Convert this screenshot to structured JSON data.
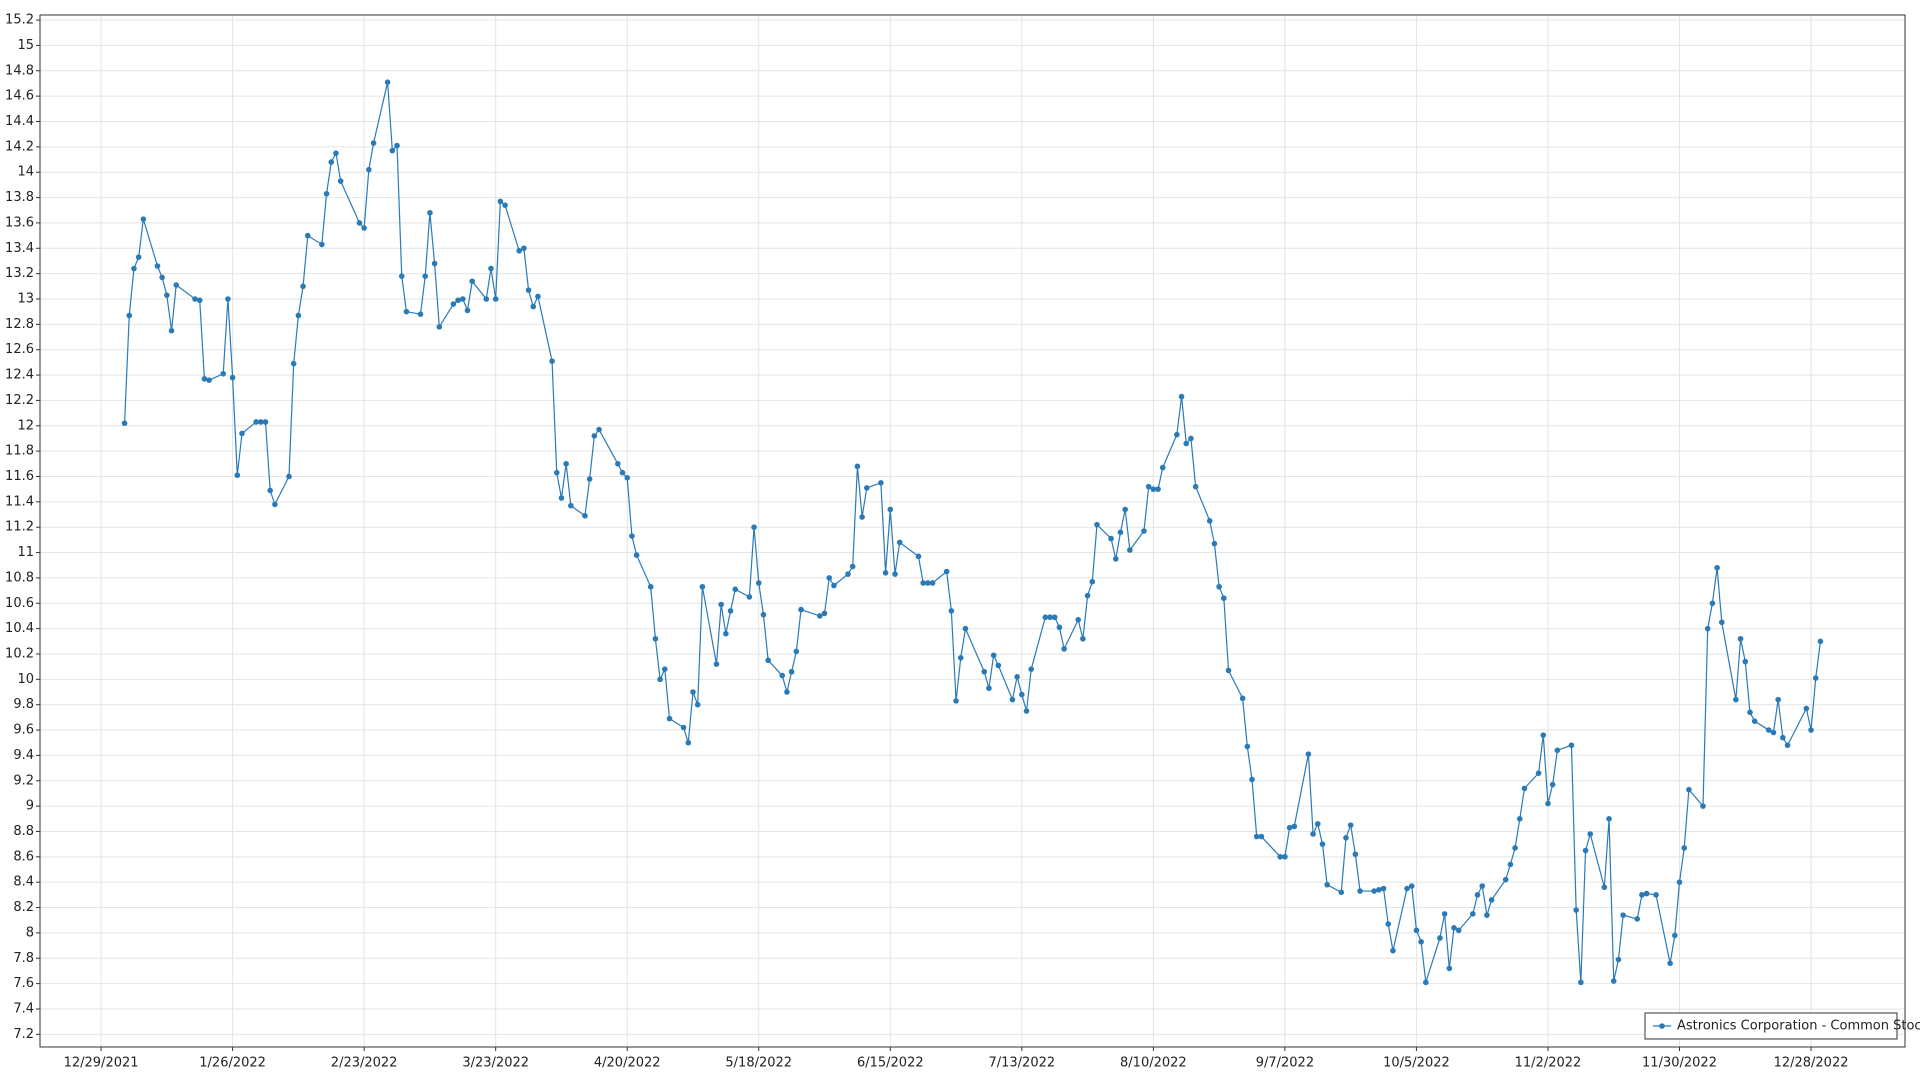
{
  "chart_data": {
    "type": "line",
    "xlim": [
      "12/16/2021",
      "1/17/2023"
    ],
    "xticks": [
      "12/29/2021",
      "1/26/2022",
      "2/23/2022",
      "3/23/2022",
      "4/20/2022",
      "5/18/2022",
      "6/15/2022",
      "7/13/2022",
      "8/10/2022",
      "9/7/2022",
      "10/5/2022",
      "11/2/2022",
      "11/30/2022",
      "12/28/2022"
    ],
    "ylim": [
      7.1,
      15.24
    ],
    "yticks": [
      7.2,
      7.4,
      7.6,
      7.8,
      8,
      8.2,
      8.4,
      8.6,
      8.8,
      9,
      9.2,
      9.4,
      9.6,
      9.8,
      10,
      10.2,
      10.4,
      10.6,
      10.8,
      11,
      11.2,
      11.4,
      11.6,
      11.8,
      12,
      12.2,
      12.4,
      12.6,
      12.8,
      13,
      13.2,
      13.4,
      13.6,
      13.8,
      14,
      14.2,
      14.4,
      14.6,
      14.8,
      15,
      15.2
    ],
    "grid": true,
    "legend": "lower right",
    "series": [
      {
        "name": "Astronics Corporation - Common Stock",
        "color": "#2a7ab8",
        "x": [
          "1/3/2022",
          "1/4/2022",
          "1/5/2022",
          "1/6/2022",
          "1/7/2022",
          "1/10/2022",
          "1/11/2022",
          "1/12/2022",
          "1/13/2022",
          "1/14/2022",
          "1/18/2022",
          "1/19/2022",
          "1/20/2022",
          "1/21/2022",
          "1/24/2022",
          "1/25/2022",
          "1/26/2022",
          "1/27/2022",
          "1/28/2022",
          "1/31/2022",
          "2/1/2022",
          "2/2/2022",
          "2/3/2022",
          "2/4/2022",
          "2/7/2022",
          "2/8/2022",
          "2/9/2022",
          "2/10/2022",
          "2/11/2022",
          "2/14/2022",
          "2/15/2022",
          "2/16/2022",
          "2/17/2022",
          "2/18/2022",
          "2/22/2022",
          "2/23/2022",
          "2/24/2022",
          "2/25/2022",
          "2/28/2022",
          "3/1/2022",
          "3/2/2022",
          "3/3/2022",
          "3/4/2022",
          "3/7/2022",
          "3/8/2022",
          "3/9/2022",
          "3/10/2022",
          "3/11/2022",
          "3/14/2022",
          "3/15/2022",
          "3/16/2022",
          "3/17/2022",
          "3/18/2022",
          "3/21/2022",
          "3/22/2022",
          "3/23/2022",
          "3/24/2022",
          "3/25/2022",
          "3/28/2022",
          "3/29/2022",
          "3/30/2022",
          "3/31/2022",
          "4/1/2022",
          "4/4/2022",
          "4/5/2022",
          "4/6/2022",
          "4/7/2022",
          "4/8/2022",
          "4/11/2022",
          "4/12/2022",
          "4/13/2022",
          "4/14/2022",
          "4/18/2022",
          "4/19/2022",
          "4/20/2022",
          "4/21/2022",
          "4/22/2022",
          "4/25/2022",
          "4/26/2022",
          "4/27/2022",
          "4/28/2022",
          "4/29/2022",
          "5/2/2022",
          "5/3/2022",
          "5/4/2022",
          "5/5/2022",
          "5/6/2022",
          "5/9/2022",
          "5/10/2022",
          "5/11/2022",
          "5/12/2022",
          "5/13/2022",
          "5/16/2022",
          "5/17/2022",
          "5/18/2022",
          "5/19/2022",
          "5/20/2022",
          "5/23/2022",
          "5/24/2022",
          "5/25/2022",
          "5/26/2022",
          "5/27/2022",
          "5/31/2022",
          "6/1/2022",
          "6/2/2022",
          "6/3/2022",
          "6/6/2022",
          "6/7/2022",
          "6/8/2022",
          "6/9/2022",
          "6/10/2022",
          "6/13/2022",
          "6/14/2022",
          "6/15/2022",
          "6/16/2022",
          "6/17/2022",
          "6/21/2022",
          "6/22/2022",
          "6/23/2022",
          "6/24/2022",
          "6/27/2022",
          "6/28/2022",
          "6/29/2022",
          "6/30/2022",
          "7/1/2022",
          "7/5/2022",
          "7/6/2022",
          "7/7/2022",
          "7/8/2022",
          "7/11/2022",
          "7/12/2022",
          "7/13/2022",
          "7/14/2022",
          "7/15/2022",
          "7/18/2022",
          "7/19/2022",
          "7/20/2022",
          "7/21/2022",
          "7/22/2022",
          "7/25/2022",
          "7/26/2022",
          "7/27/2022",
          "7/28/2022",
          "7/29/2022",
          "8/1/2022",
          "8/2/2022",
          "8/3/2022",
          "8/4/2022",
          "8/5/2022",
          "8/8/2022",
          "8/9/2022",
          "8/10/2022",
          "8/11/2022",
          "8/12/2022",
          "8/15/2022",
          "8/16/2022",
          "8/17/2022",
          "8/18/2022",
          "8/19/2022",
          "8/22/2022",
          "8/23/2022",
          "8/24/2022",
          "8/25/2022",
          "8/26/2022",
          "8/29/2022",
          "8/30/2022",
          "8/31/2022",
          "9/1/2022",
          "9/2/2022",
          "9/6/2022",
          "9/7/2022",
          "9/8/2022",
          "9/9/2022",
          "9/12/2022",
          "9/13/2022",
          "9/14/2022",
          "9/15/2022",
          "9/16/2022",
          "9/19/2022",
          "9/20/2022",
          "9/21/2022",
          "9/22/2022",
          "9/23/2022",
          "9/26/2022",
          "9/27/2022",
          "9/28/2022",
          "9/29/2022",
          "9/30/2022",
          "10/3/2022",
          "10/4/2022",
          "10/5/2022",
          "10/6/2022",
          "10/7/2022",
          "10/10/2022",
          "10/11/2022",
          "10/12/2022",
          "10/13/2022",
          "10/14/2022",
          "10/17/2022",
          "10/18/2022",
          "10/19/2022",
          "10/20/2022",
          "10/21/2022",
          "10/24/2022",
          "10/25/2022",
          "10/26/2022",
          "10/27/2022",
          "10/28/2022",
          "10/31/2022",
          "11/1/2022",
          "11/2/2022",
          "11/3/2022",
          "11/4/2022",
          "11/7/2022",
          "11/8/2022",
          "11/9/2022",
          "11/10/2022",
          "11/11/2022",
          "11/14/2022",
          "11/15/2022",
          "11/16/2022",
          "11/17/2022",
          "11/18/2022",
          "11/21/2022",
          "11/22/2022",
          "11/23/2022",
          "11/25/2022",
          "11/28/2022",
          "11/29/2022",
          "11/30/2022",
          "12/1/2022",
          "12/2/2022",
          "12/5/2022",
          "12/6/2022",
          "12/7/2022",
          "12/8/2022",
          "12/9/2022",
          "12/12/2022",
          "12/13/2022",
          "12/14/2022",
          "12/15/2022",
          "12/16/2022",
          "12/19/2022",
          "12/20/2022",
          "12/21/2022",
          "12/22/2022",
          "12/23/2022",
          "12/27/2022",
          "12/28/2022",
          "12/29/2022",
          "12/30/2022"
        ],
        "values": [
          12.02,
          12.87,
          13.24,
          13.33,
          13.63,
          13.26,
          13.17,
          13.03,
          12.75,
          13.11,
          13.0,
          12.99,
          12.37,
          12.36,
          12.41,
          13.0,
          12.38,
          11.61,
          11.94,
          12.03,
          12.03,
          12.03,
          11.49,
          11.38,
          11.6,
          12.49,
          12.87,
          13.1,
          13.5,
          13.43,
          13.83,
          14.08,
          14.15,
          13.93,
          13.6,
          13.56,
          14.02,
          14.23,
          14.71,
          14.17,
          14.21,
          13.18,
          12.9,
          12.88,
          13.18,
          13.68,
          13.28,
          12.78,
          12.96,
          12.99,
          13.0,
          12.91,
          13.14,
          13.0,
          13.24,
          13.0,
          13.77,
          13.74,
          13.38,
          13.4,
          13.07,
          12.94,
          13.02,
          12.51,
          11.63,
          11.43,
          11.7,
          11.37,
          11.29,
          11.58,
          11.92,
          11.97,
          11.7,
          11.63,
          11.59,
          11.13,
          10.98,
          10.73,
          10.32,
          10.0,
          10.08,
          9.69,
          9.62,
          9.5,
          9.9,
          9.8,
          10.73,
          10.12,
          10.59,
          10.36,
          10.54,
          10.71,
          10.65,
          11.2,
          10.76,
          10.51,
          10.15,
          10.03,
          9.9,
          10.06,
          10.22,
          10.55,
          10.5,
          10.52,
          10.8,
          10.74,
          10.83,
          10.89,
          11.68,
          11.28,
          11.51,
          11.55,
          10.84,
          11.34,
          10.83,
          11.08,
          10.97,
          10.76,
          10.76,
          10.76,
          10.85,
          10.54,
          9.83,
          10.17,
          10.4,
          10.06,
          9.93,
          10.19,
          10.11,
          9.84,
          10.02,
          9.88,
          9.75,
          10.08,
          10.49,
          10.49,
          10.49,
          10.41,
          10.24,
          10.47,
          10.32,
          10.66,
          10.77,
          11.22,
          11.11,
          10.95,
          11.16,
          11.34,
          11.02,
          11.17,
          11.52,
          11.5,
          11.5,
          11.67,
          11.93,
          12.23,
          11.86,
          11.9,
          11.52,
          11.25,
          11.07,
          10.73,
          10.64,
          10.07,
          9.85,
          9.47,
          9.21,
          8.76,
          8.76,
          8.6,
          8.6,
          8.83,
          8.84,
          9.41,
          8.78,
          8.86,
          8.7,
          8.38,
          8.32,
          8.75,
          8.85,
          8.62,
          8.33,
          8.33,
          8.34,
          8.35,
          8.07,
          7.86,
          8.35,
          8.37,
          8.02,
          7.93,
          7.61,
          7.96,
          8.15,
          7.72,
          8.04,
          8.02,
          8.15,
          8.3,
          8.37,
          8.14,
          8.26,
          8.42,
          8.54,
          8.67,
          8.9,
          9.14,
          9.26,
          9.56,
          9.02,
          9.17,
          9.44,
          9.48,
          8.18,
          7.61,
          8.65,
          8.78,
          8.36,
          8.9,
          7.62,
          7.79,
          8.14,
          8.11,
          8.3,
          8.31,
          8.3,
          7.76,
          7.98,
          8.4,
          8.67,
          9.13,
          9.0,
          10.4,
          10.6,
          10.88,
          10.45,
          9.84,
          10.32,
          10.14,
          9.74,
          9.67,
          9.6,
          9.58,
          9.84,
          9.54,
          9.48,
          9.77,
          9.6,
          10.01,
          10.3
        ]
      }
    ]
  }
}
